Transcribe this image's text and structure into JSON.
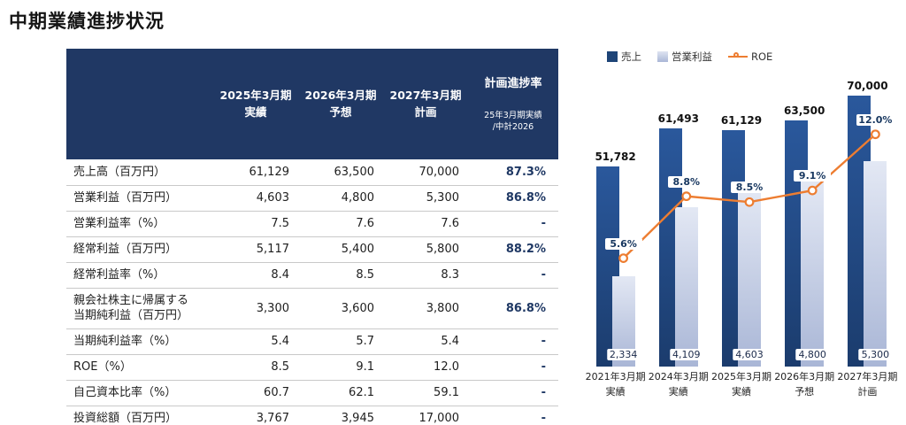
{
  "title": "中期業績進捗状況",
  "table": {
    "header": {
      "col_label": "",
      "col_2025": "2025年3月期\n実績",
      "col_2026": "2026年3月期\n予想",
      "col_2027": "2027年3月期\n計画",
      "progress_title": "計画進捗率",
      "progress_sub": "25年3月期実績\n/中計2026"
    },
    "rows": [
      {
        "label": "売上高（百万円）",
        "v2025": "61,129",
        "v2026": "63,500",
        "v2027": "70,000",
        "progress": "87.3%"
      },
      {
        "label": "営業利益（百万円）",
        "v2025": "4,603",
        "v2026": "4,800",
        "v2027": "5,300",
        "progress": "86.8%"
      },
      {
        "label": "営業利益率（%）",
        "v2025": "7.5",
        "v2026": "7.6",
        "v2027": "7.6",
        "progress": "-"
      },
      {
        "label": "経常利益（百万円）",
        "v2025": "5,117",
        "v2026": "5,400",
        "v2027": "5,800",
        "progress": "88.2%"
      },
      {
        "label": "経常利益率（%）",
        "v2025": "8.4",
        "v2026": "8.5",
        "v2027": "8.3",
        "progress": "-"
      },
      {
        "label": "親会社株主に帰属する\n当期純利益（百万円）",
        "v2025": "3,300",
        "v2026": "3,600",
        "v2027": "3,800",
        "progress": "86.8%"
      },
      {
        "label": "当期純利益率（%）",
        "v2025": "5.4",
        "v2026": "5.7",
        "v2027": "5.4",
        "progress": "-"
      },
      {
        "label": "ROE（%）",
        "v2025": "8.5",
        "v2026": "9.1",
        "v2027": "12.0",
        "progress": "-"
      },
      {
        "label": "自己資本比率（%）",
        "v2025": "60.7",
        "v2026": "62.1",
        "v2027": "59.1",
        "progress": "-"
      },
      {
        "label": "投資総額（百万円）",
        "v2025": "3,767",
        "v2026": "3,945",
        "v2027": "17,000",
        "progress": "-"
      }
    ]
  },
  "chart_data": {
    "type": "bar",
    "subtype": "bar+line-combo",
    "categories": [
      "2021年3月期\n実績",
      "2024年3月期\n実績",
      "2025年3月期\n実績",
      "2026年3月期\n予想",
      "2027年3月期\n計画"
    ],
    "series": [
      {
        "name": "売上",
        "type": "bar",
        "axis": "primary",
        "values": [
          51782,
          61493,
          61129,
          63500,
          70000
        ],
        "labels": [
          "51,782",
          "61,493",
          "61,129",
          "63,500",
          "70,000"
        ],
        "color": "#1e4477"
      },
      {
        "name": "営業利益",
        "type": "bar",
        "axis": "secondary",
        "values": [
          2334,
          4109,
          4603,
          4800,
          5300
        ],
        "labels": [
          "2,334",
          "4,109",
          "4,603",
          "4,800",
          "5,300"
        ],
        "color": "#bcc7e0"
      },
      {
        "name": "ROE",
        "type": "line",
        "axis": "percent",
        "values": [
          5.6,
          8.8,
          8.5,
          9.1,
          12.0
        ],
        "labels": [
          "5.6%",
          "8.8%",
          "8.5%",
          "9.1%",
          "12.0%"
        ],
        "color": "#ed7d31"
      }
    ],
    "axes": {
      "sales_max": 70000,
      "profit_max": 7000,
      "roe_max": 14
    },
    "legend_position": "top",
    "grid": false
  },
  "colors": {
    "header_navy": "#203864",
    "accent_navy": "#1f3864",
    "bar_navy": "#1e4477",
    "bar_light": "#bcc7e0",
    "line_orange": "#ed7d31"
  }
}
